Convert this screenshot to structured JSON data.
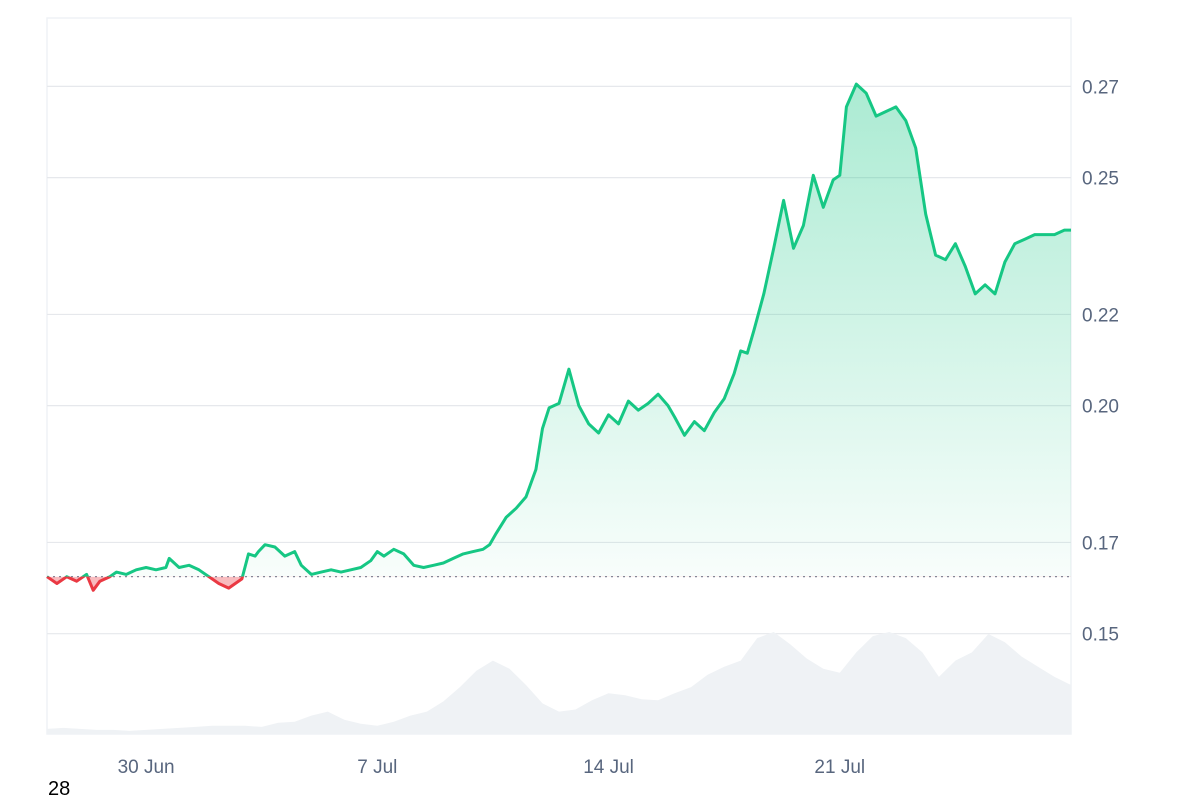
{
  "chart_data": {
    "type": "area",
    "title": "",
    "xlabel": "",
    "ylabel": "",
    "grid": true,
    "x_range": [
      "27 Jun",
      "28 Jul"
    ],
    "ylim": [
      0.128,
      0.285
    ],
    "y_ticks": [
      0.15,
      0.17,
      0.2,
      0.22,
      0.25,
      0.27
    ],
    "y_tick_labels": [
      "0.15",
      "0.17",
      "0.20",
      "0.22",
      "0.25",
      "0.27"
    ],
    "x_ticks": [
      {
        "day": 3,
        "label": "30 Jun"
      },
      {
        "day": 10,
        "label": "7 Jul"
      },
      {
        "day": 17,
        "label": "14 Jul"
      },
      {
        "day": 24,
        "label": "21 Jul"
      }
    ],
    "baseline": 0.1625,
    "price_series": {
      "name": "",
      "day_offset": [
        0.0,
        0.3,
        0.6,
        0.9,
        1.2,
        1.4,
        1.6,
        1.9,
        2.1,
        2.4,
        2.7,
        3.0,
        3.3,
        3.6,
        3.7,
        4.0,
        4.3,
        4.6,
        4.9,
        5.2,
        5.5,
        5.7,
        5.9,
        6.1,
        6.3,
        6.4,
        6.6,
        6.9,
        7.2,
        7.5,
        7.7,
        8.0,
        8.3,
        8.6,
        8.9,
        9.2,
        9.5,
        9.8,
        10.0,
        10.2,
        10.5,
        10.8,
        11.1,
        11.4,
        11.7,
        12.0,
        12.3,
        12.6,
        12.9,
        13.2,
        13.4,
        13.6,
        13.9,
        14.2,
        14.5,
        14.8,
        15.0,
        15.2,
        15.5,
        15.8,
        16.1,
        16.4,
        16.7,
        17.0,
        17.3,
        17.6,
        17.9,
        18.2,
        18.5,
        18.8,
        19.0,
        19.3,
        19.6,
        19.9,
        20.2,
        20.5,
        20.8,
        21.0,
        21.2,
        21.4,
        21.7,
        22.0,
        22.3,
        22.6,
        22.9,
        23.2,
        23.5,
        23.8,
        24.0,
        24.2,
        24.5,
        24.8,
        25.1,
        25.4,
        25.7,
        26.0,
        26.3,
        26.6,
        26.9,
        27.2,
        27.5,
        27.8,
        28.1,
        28.4,
        28.7,
        29.0,
        29.3,
        29.6,
        29.9,
        30.2,
        30.5,
        30.8,
        31.0
      ],
      "values": [
        0.1625,
        0.161,
        0.1625,
        0.1615,
        0.163,
        0.1595,
        0.1615,
        0.1625,
        0.1635,
        0.163,
        0.164,
        0.1645,
        0.164,
        0.1645,
        0.1665,
        0.1645,
        0.165,
        0.164,
        0.1625,
        0.161,
        0.16,
        0.161,
        0.162,
        0.1675,
        0.167,
        0.168,
        0.1695,
        0.169,
        0.167,
        0.168,
        0.165,
        0.163,
        0.1635,
        0.164,
        0.1635,
        0.164,
        0.1645,
        0.166,
        0.168,
        0.167,
        0.1685,
        0.1675,
        0.165,
        0.1645,
        0.165,
        0.1655,
        0.1665,
        0.1675,
        0.168,
        0.1685,
        0.1695,
        0.172,
        0.1755,
        0.1775,
        0.18,
        0.186,
        0.195,
        0.1995,
        0.2005,
        0.208,
        0.2,
        0.196,
        0.194,
        0.198,
        0.196,
        0.201,
        0.199,
        0.2005,
        0.2025,
        0.2,
        0.1975,
        0.1935,
        0.1965,
        0.1945,
        0.1985,
        0.2015,
        0.207,
        0.212,
        0.2115,
        0.2165,
        0.2245,
        0.2345,
        0.245,
        0.2345,
        0.2395,
        0.2505,
        0.2435,
        0.2495,
        0.2505,
        0.2655,
        0.2705,
        0.2685,
        0.2635,
        0.2645,
        0.2655,
        0.2625,
        0.2565,
        0.242,
        0.233,
        0.232,
        0.2355,
        0.2305,
        0.2245,
        0.2265,
        0.2245,
        0.2315,
        0.2355,
        0.2365,
        0.2375,
        0.2375,
        0.2375,
        0.2385,
        0.2385
      ]
    },
    "volume_series": {
      "name": "",
      "values": [
        0.05,
        0.06,
        0.05,
        0.04,
        0.04,
        0.03,
        0.04,
        0.05,
        0.06,
        0.07,
        0.08,
        0.08,
        0.08,
        0.07,
        0.11,
        0.12,
        0.18,
        0.22,
        0.14,
        0.1,
        0.08,
        0.12,
        0.18,
        0.22,
        0.32,
        0.46,
        0.62,
        0.72,
        0.64,
        0.48,
        0.3,
        0.22,
        0.24,
        0.33,
        0.4,
        0.38,
        0.34,
        0.33,
        0.4,
        0.46,
        0.58,
        0.66,
        0.72,
        0.94,
        1.0,
        0.88,
        0.74,
        0.64,
        0.6,
        0.8,
        0.96,
        1.0,
        0.94,
        0.8,
        0.56,
        0.72,
        0.8,
        0.98,
        0.9,
        0.76,
        0.66,
        0.56,
        0.48
      ]
    },
    "colors": {
      "up_line": "#16c784",
      "down_line": "#ea3943",
      "up_fill": "#16c784",
      "down_fill": "#ea3943",
      "grid": "#e6e8ec",
      "volume": "#eff2f5",
      "baseline": "#808a9d"
    }
  },
  "corner_label": "28"
}
